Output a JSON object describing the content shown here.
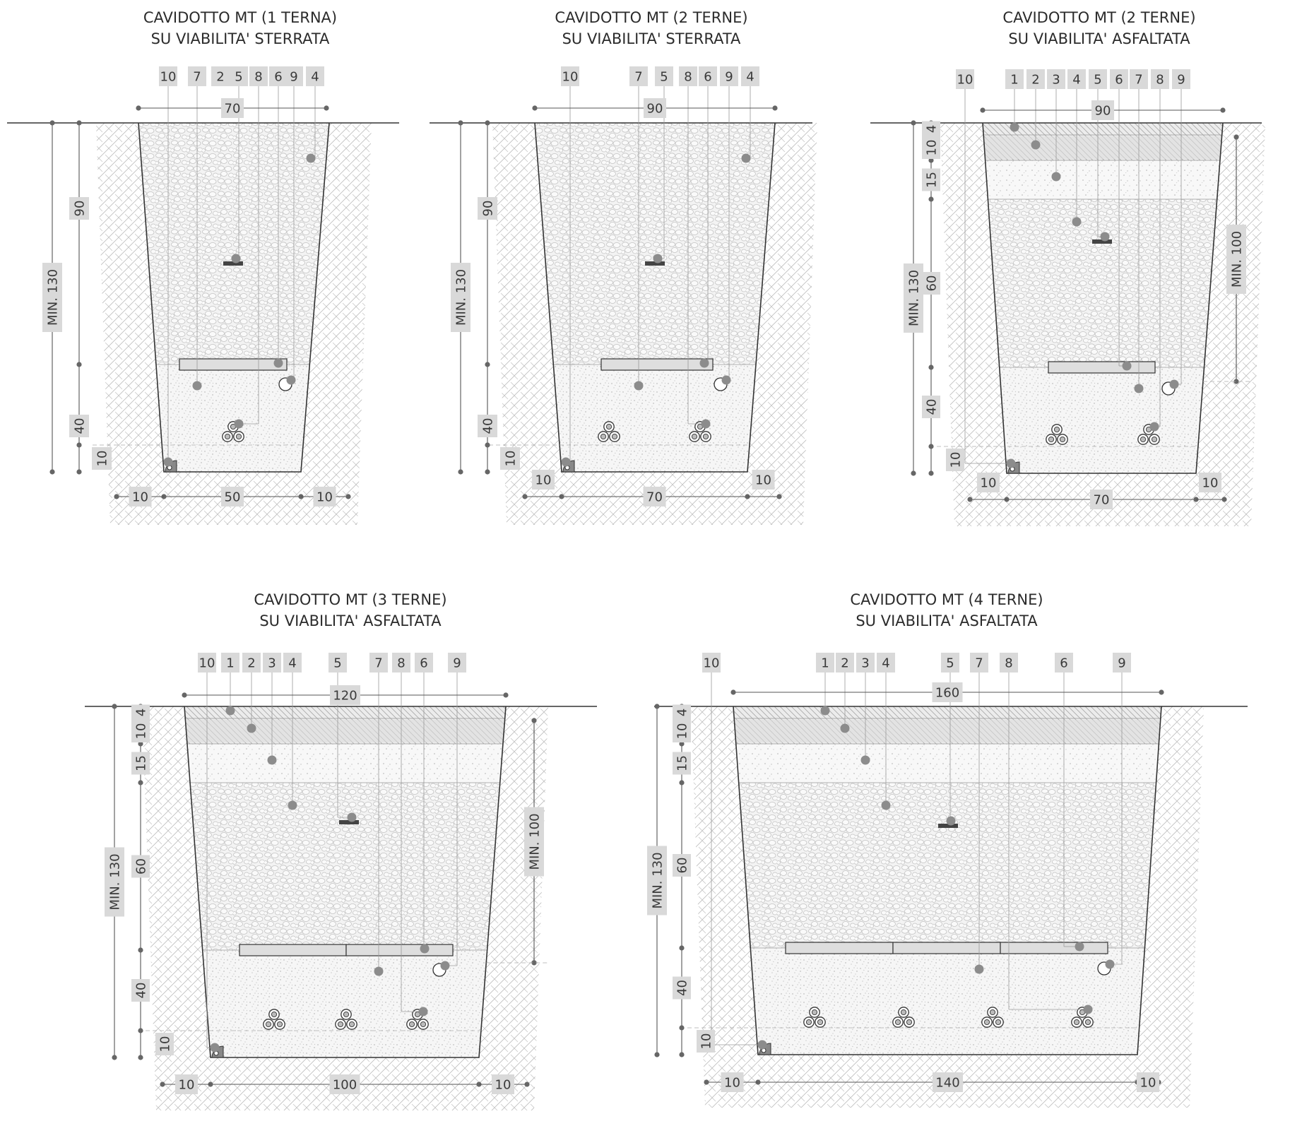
{
  "panels": [
    {
      "id": "panel-1",
      "title": [
        "CAVIDOTTO MT (1 TERNA)",
        "SU VIABILITA' STERRATA"
      ],
      "paved": false,
      "terne": 1,
      "callouts": [
        "10",
        "7",
        "2",
        "5",
        "8",
        "6",
        "9",
        "4"
      ],
      "dimensions": {
        "top_width": "70",
        "bottom_width": "50",
        "side_margin": "10",
        "total_depth": "MIN. 130",
        "upper_depth": "90",
        "lower_depth": "40",
        "base_depth": "10"
      }
    },
    {
      "id": "panel-2",
      "title": [
        "CAVIDOTTO MT (2 TERNE)",
        "SU VIABILITA' STERRATA"
      ],
      "paved": false,
      "terne": 2,
      "callouts": [
        "10",
        "7",
        "5",
        "8",
        "6",
        "9",
        "4"
      ],
      "dimensions": {
        "top_width": "90",
        "bottom_width": "70",
        "side_margin": "10",
        "total_depth": "MIN. 130",
        "upper_depth": "90",
        "lower_depth": "40",
        "base_depth": "10"
      }
    },
    {
      "id": "panel-3",
      "title": [
        "CAVIDOTTO MT (2 TERNE)",
        "SU VIABILITA' ASFALTATA"
      ],
      "paved": true,
      "terne": 2,
      "callouts": [
        "10",
        "1",
        "2",
        "3",
        "4",
        "5",
        "6",
        "7",
        "8",
        "9"
      ],
      "dimensions": {
        "top_width": "90",
        "bottom_width": "70",
        "side_margin": "10",
        "total_depth": "MIN. 130",
        "asphalt": "4",
        "binder": "10",
        "subbase": "15",
        "fill": "60",
        "lower_depth": "40",
        "base_depth": "10",
        "right_depth": "MIN. 100"
      }
    },
    {
      "id": "panel-4",
      "title": [
        "CAVIDOTTO MT (3 TERNE)",
        "SU VIABILITA' ASFALTATA"
      ],
      "paved": true,
      "terne": 3,
      "callouts": [
        "10",
        "1",
        "2",
        "3",
        "4",
        "5",
        "7",
        "8",
        "6",
        "9"
      ],
      "dimensions": {
        "top_width": "120",
        "bottom_width": "100",
        "side_margin": "10",
        "total_depth": "MIN. 130",
        "asphalt": "4",
        "binder": "10",
        "subbase": "15",
        "fill": "60",
        "lower_depth": "40",
        "base_depth": "10",
        "right_depth": "MIN. 100"
      }
    },
    {
      "id": "panel-5",
      "title": [
        "CAVIDOTTO MT (4 TERNE)",
        "SU VIABILITA' ASFALTATA"
      ],
      "paved": true,
      "terne": 4,
      "callouts": [
        "10",
        "1",
        "2",
        "3",
        "4",
        "5",
        "7",
        "8",
        "6",
        "9"
      ],
      "dimensions": {
        "top_width": "160",
        "bottom_width": "140",
        "side_margin": "10",
        "total_depth": "MIN. 130",
        "asphalt": "4",
        "binder": "10",
        "subbase": "15",
        "fill": "60",
        "lower_depth": "40",
        "base_depth": "10"
      }
    }
  ],
  "colors": {
    "line": "#333333",
    "label_bg": "#d9d9d9",
    "dot": "#8c8c8c",
    "hatch": "#b4b4b4"
  }
}
